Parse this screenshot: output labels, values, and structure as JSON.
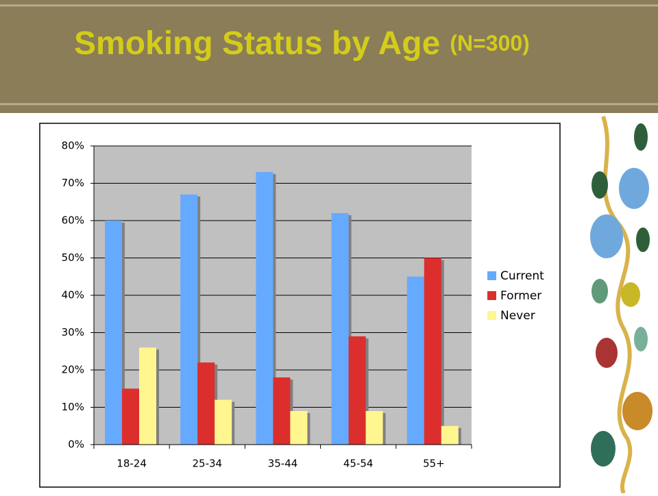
{
  "chart_data": {
    "type": "bar",
    "title": "Smoking Status by Age",
    "subtitle": "(N=300)",
    "categories": [
      "18-24",
      "25-34",
      "35-44",
      "45-54",
      "55+"
    ],
    "series": [
      {
        "name": "Current",
        "color": "#66aaff",
        "values": [
          60,
          67,
          73,
          62,
          45
        ]
      },
      {
        "name": "Former",
        "color": "#dd2e2e",
        "values": [
          15,
          22,
          18,
          29,
          50
        ]
      },
      {
        "name": "Never",
        "color": "#fff68f",
        "values": [
          26,
          12,
          9,
          9,
          5
        ]
      }
    ],
    "ylim": [
      0,
      80
    ],
    "yticks": [
      {
        "value": 0,
        "label": "0%"
      },
      {
        "value": 10,
        "label": "10%"
      },
      {
        "value": 20,
        "label": "20%"
      },
      {
        "value": 30,
        "label": "30%"
      },
      {
        "value": 40,
        "label": "40%"
      },
      {
        "value": 50,
        "label": "50%"
      },
      {
        "value": 60,
        "label": "60%"
      },
      {
        "value": 70,
        "label": "70%"
      },
      {
        "value": 80,
        "label": "80%"
      }
    ],
    "grid": true,
    "legend": "right"
  }
}
